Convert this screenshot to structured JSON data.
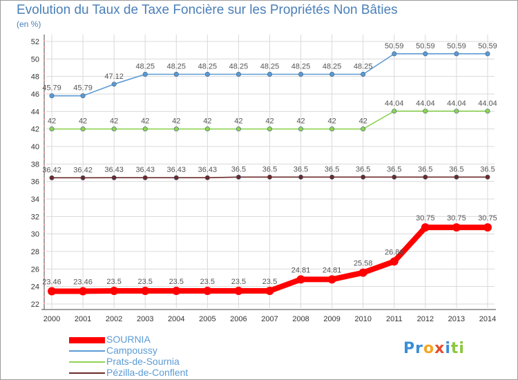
{
  "header": {
    "title": "Evolution du Taux de Taxe Foncière sur les Propriétés Non Bâties",
    "unit": "(en %)"
  },
  "chart_data": {
    "type": "line",
    "title": "Evolution du Taux de Taxe Foncière sur les Propriétés Non Bâties",
    "ylabel": "(en %)",
    "xlabel": "",
    "ylim": [
      22,
      52
    ],
    "yticks": [
      "22",
      "24",
      "26",
      "28",
      "30",
      "32",
      "34",
      "36",
      "38",
      "40",
      "42",
      "44",
      "46",
      "48",
      "50",
      "52"
    ],
    "categories": [
      "2000",
      "2001",
      "2002",
      "2003",
      "2004",
      "2005",
      "2006",
      "2007",
      "2008",
      "2009",
      "2010",
      "2011",
      "2012",
      "2013",
      "2014"
    ],
    "grid": true,
    "legend_position": "bottom-left",
    "series": [
      {
        "name": "SOURNIA",
        "color": "#ff0000",
        "values": [
          23.46,
          23.46,
          23.5,
          23.5,
          23.5,
          23.5,
          23.5,
          23.5,
          24.81,
          24.81,
          25.58,
          26.86,
          30.75,
          30.75,
          30.75
        ],
        "labels": [
          "23.46",
          "23.46",
          "23.5",
          "23.5",
          "23.5",
          "23.5",
          "23.5",
          "23.5",
          "24.81",
          "24.81",
          "25.58",
          "26.86",
          "30.75",
          "30.75",
          "30.75"
        ]
      },
      {
        "name": "Campoussy",
        "color": "#5b9bd5",
        "values": [
          45.79,
          45.79,
          47.12,
          48.25,
          48.25,
          48.25,
          48.25,
          48.25,
          48.25,
          48.25,
          48.25,
          50.59,
          50.59,
          50.59,
          50.59
        ],
        "labels": [
          "45.79",
          "45.79",
          "47.12",
          "48.25",
          "48.25",
          "48.25",
          "48.25",
          "48.25",
          "48.25",
          "48.25",
          "48.25",
          "50.59",
          "50.59",
          "50.59",
          "50.59"
        ]
      },
      {
        "name": "Prats-de-Sournia",
        "color": "#8ed353",
        "values": [
          42,
          42,
          42,
          42,
          42,
          42,
          42,
          42,
          42,
          42,
          42,
          44.04,
          44.04,
          44.04,
          44.04
        ],
        "labels": [
          "42",
          "42",
          "42",
          "42",
          "42",
          "42",
          "42",
          "42",
          "42",
          "42",
          "42",
          "44.04",
          "44.04",
          "44.04",
          "44.04"
        ]
      },
      {
        "name": "Pézilla-de-Conflent",
        "color": "#6b2a2a",
        "values": [
          36.42,
          36.42,
          36.43,
          36.43,
          36.43,
          36.43,
          36.5,
          36.5,
          36.5,
          36.5,
          36.5,
          36.5,
          36.5,
          36.5,
          36.5
        ],
        "labels": [
          "36.42",
          "36.42",
          "36.43",
          "36.43",
          "36.43",
          "36.43",
          "36.5",
          "36.5",
          "36.5",
          "36.5",
          "36.5",
          "36.5",
          "36.5",
          "36.5",
          "36.5"
        ]
      }
    ]
  },
  "legend": {
    "items": [
      {
        "label": "SOURNIA",
        "color": "#ff0000"
      },
      {
        "label": "Campoussy",
        "color": "#5b9bd5"
      },
      {
        "label": "Prats-de-Sournia",
        "color": "#8ed353"
      },
      {
        "label": "Pézilla-de-Conflent",
        "color": "#6b2a2a"
      }
    ]
  },
  "logo": {
    "text": "Proxiti",
    "letters": [
      "P",
      "r",
      "o",
      "x",
      "i",
      "t",
      "i"
    ],
    "colors": [
      "#3a8ed6",
      "#3a8ed6",
      "#f5a623",
      "#e64b2b",
      "#3a8ed6",
      "#8cc63f",
      "#8cc63f"
    ]
  }
}
